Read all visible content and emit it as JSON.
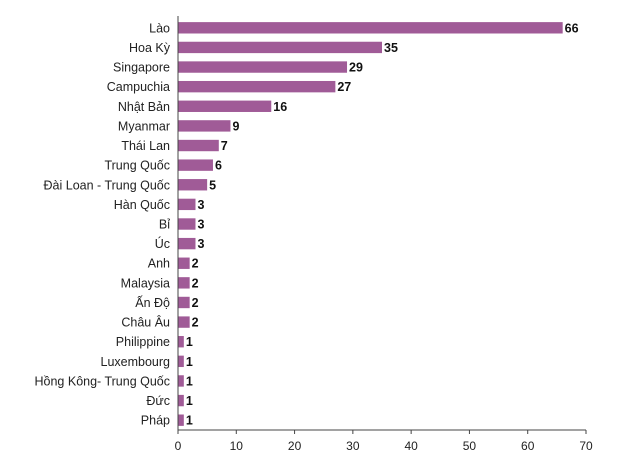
{
  "chart_data": {
    "type": "bar",
    "orientation": "horizontal",
    "title": "",
    "xlabel": "",
    "ylabel": "",
    "categories": [
      "Lào",
      "Hoa Kỳ",
      "Singapore",
      "Campuchia",
      "Nhật Bản",
      "Myanmar",
      "Thái Lan",
      "Trung Quốc",
      "Đài Loan - Trung Quốc",
      "Hàn Quốc",
      "Bỉ",
      "Úc",
      "Anh",
      "Malaysia",
      "Ấn Độ",
      "Châu Âu",
      "Philippine",
      "Luxembourg",
      "Hồng Kông- Trung Quốc",
      "Đức",
      "Pháp"
    ],
    "values": [
      66,
      35,
      29,
      27,
      16,
      9,
      7,
      6,
      5,
      3,
      3,
      3,
      2,
      2,
      2,
      2,
      1,
      1,
      1,
      1,
      1
    ],
    "xlim": [
      0,
      70
    ],
    "xticks": [
      0,
      10,
      20,
      30,
      40,
      50,
      60,
      70
    ],
    "bar_color": "#a05b97",
    "grid": false,
    "legend": "none"
  }
}
